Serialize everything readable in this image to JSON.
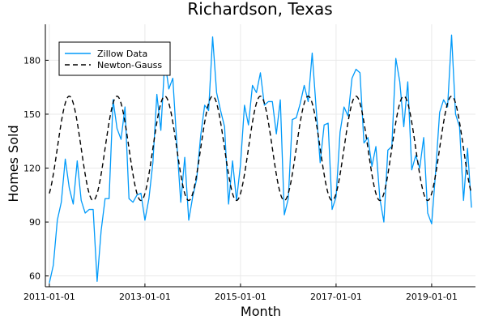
{
  "chart_data": {
    "type": "line",
    "title": "Richardson, Texas",
    "xlabel": "Month",
    "ylabel": "Homes Sold",
    "x_range": [
      "2010-12-01",
      "2019-12-01"
    ],
    "ylim": [
      54,
      200
    ],
    "x_ticks": [
      "2011-01-01",
      "2013-01-01",
      "2015-01-01",
      "2017-01-01",
      "2019-01-01"
    ],
    "y_ticks": [
      60,
      90,
      120,
      150,
      180
    ],
    "grid": true,
    "legend_position": "top-left",
    "series": [
      {
        "name": "Zillow Data",
        "color": "#009AFA",
        "style": "solid",
        "x": [
          "2011-01",
          "2011-02",
          "2011-03",
          "2011-04",
          "2011-05",
          "2011-06",
          "2011-07",
          "2011-08",
          "2011-09",
          "2011-10",
          "2011-11",
          "2011-12",
          "2012-01",
          "2012-02",
          "2012-03",
          "2012-04",
          "2012-05",
          "2012-06",
          "2012-07",
          "2012-08",
          "2012-09",
          "2012-10",
          "2012-11",
          "2012-12",
          "2013-01",
          "2013-02",
          "2013-03",
          "2013-04",
          "2013-05",
          "2013-06",
          "2013-07",
          "2013-08",
          "2013-09",
          "2013-10",
          "2013-11",
          "2013-12",
          "2014-01",
          "2014-02",
          "2014-03",
          "2014-04",
          "2014-05",
          "2014-06",
          "2014-07",
          "2014-08",
          "2014-09",
          "2014-10",
          "2014-11",
          "2014-12",
          "2015-01",
          "2015-02",
          "2015-03",
          "2015-04",
          "2015-05",
          "2015-06",
          "2015-07",
          "2015-08",
          "2015-09",
          "2015-10",
          "2015-11",
          "2015-12",
          "2016-01",
          "2016-02",
          "2016-03",
          "2016-04",
          "2016-05",
          "2016-06",
          "2016-07",
          "2016-08",
          "2016-09",
          "2016-10",
          "2016-11",
          "2016-12",
          "2017-01",
          "2017-02",
          "2017-03",
          "2017-04",
          "2017-05",
          "2017-06",
          "2017-07",
          "2017-08",
          "2017-09",
          "2017-10",
          "2017-11",
          "2017-12",
          "2018-01",
          "2018-02",
          "2018-03",
          "2018-04",
          "2018-05",
          "2018-06",
          "2018-07",
          "2018-08",
          "2018-09",
          "2018-10",
          "2018-11",
          "2018-12",
          "2019-01",
          "2019-02",
          "2019-03",
          "2019-04",
          "2019-05",
          "2019-06",
          "2019-07",
          "2019-08",
          "2019-09",
          "2019-10",
          "2019-11"
        ],
        "values": [
          56,
          66,
          91,
          101,
          125,
          109,
          100,
          124,
          102,
          95,
          97,
          97,
          57,
          85,
          103,
          103,
          158,
          142,
          136,
          154,
          103,
          101,
          105,
          106,
          91,
          103,
          123,
          161,
          141,
          180,
          164,
          170,
          134,
          101,
          126,
          91,
          104,
          114,
          138,
          155,
          152,
          193,
          162,
          152,
          143,
          100,
          124,
          102,
          122,
          155,
          144,
          166,
          162,
          173,
          155,
          157,
          157,
          139,
          158,
          94,
          103,
          147,
          148,
          156,
          166,
          157,
          184,
          153,
          123,
          144,
          145,
          97,
          104,
          140,
          154,
          149,
          170,
          175,
          173,
          134,
          137,
          121,
          132,
          103,
          90,
          130,
          132,
          181,
          168,
          143,
          168,
          119,
          127,
          120,
          137,
          95,
          89,
          118,
          151,
          158,
          154,
          194,
          150,
          143,
          102,
          131,
          98
        ]
      },
      {
        "name": "Newton-Gauss",
        "color": "#000000",
        "style": "dashed",
        "mean": 131,
        "amplitude": 29,
        "peak_month": 6,
        "x_start": "2011-01",
        "x_end": "2019-11"
      }
    ]
  }
}
